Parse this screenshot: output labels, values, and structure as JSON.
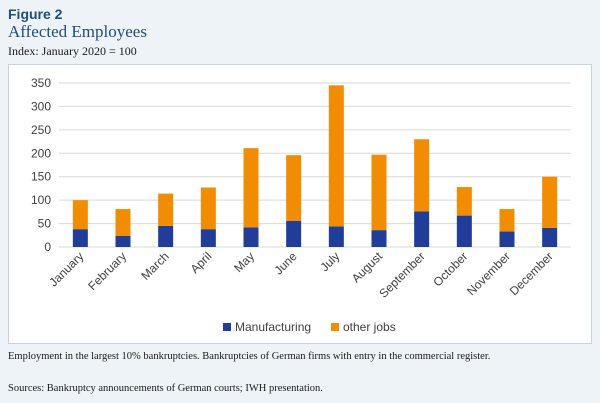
{
  "figure": {
    "label": "Figure 2",
    "title": "Affected Employees",
    "subtitle": "Index: January 2020 = 100",
    "note": "Employment in the largest 10% bankruptcies. Bankruptcies of German firms with entry in the commercial register.",
    "source": "Sources: Bankruptcy announcements of German courts; IWH presentation."
  },
  "colors": {
    "manufacturing": "#1f3d99",
    "other_jobs": "#f28c00",
    "grid": "#d9d9d9"
  },
  "chart_data": {
    "type": "bar",
    "stacked": true,
    "categories": [
      "January",
      "February",
      "March",
      "April",
      "May",
      "June",
      "July",
      "August",
      "September",
      "October",
      "November",
      "December"
    ],
    "series": [
      {
        "name": "Manufacturing",
        "values": [
          38,
          24,
          45,
          38,
          42,
          56,
          44,
          36,
          76,
          67,
          33,
          41
        ]
      },
      {
        "name": "other jobs",
        "values": [
          62,
          57,
          69,
          89,
          169,
          140,
          301,
          161,
          154,
          61,
          48,
          109
        ]
      }
    ],
    "ylim": [
      0,
      350
    ],
    "yticks": [
      0,
      50,
      100,
      150,
      200,
      250,
      300,
      350
    ],
    "grid": true,
    "legend": "bottom"
  }
}
